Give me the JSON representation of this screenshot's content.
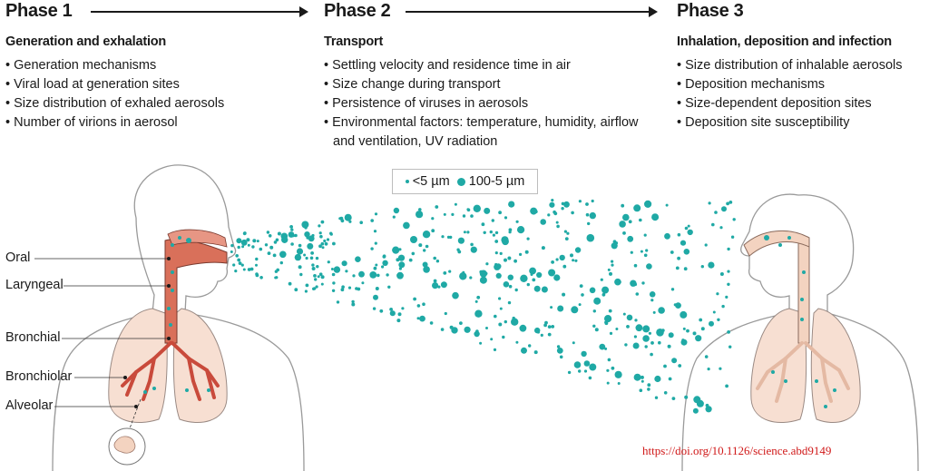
{
  "phases": [
    {
      "title": "Phase 1",
      "subtitle": "Generation and exhalation",
      "items": [
        "Generation mechanisms",
        "Viral load at generation sites",
        "Size distribution of exhaled aerosols",
        "Number of virions in aerosol"
      ]
    },
    {
      "title": "Phase 2",
      "subtitle": "Transport",
      "items": [
        "Settling velocity and residence time in air",
        "Size change during transport",
        "Persistence of viruses in aerosols",
        "Environmental factors: temperature, humidity, airflow and ventilation, UV radiation"
      ]
    },
    {
      "title": "Phase 3",
      "subtitle": "Inhalation, deposition and infection",
      "items": [
        "Size distribution of inhalable aerosols",
        "Deposition mechanisms",
        "Size-dependent deposition sites",
        "Deposition site susceptibility"
      ]
    }
  ],
  "legend": {
    "small": "<5 µm",
    "large": "100-5 µm"
  },
  "regions": [
    "Oral",
    "Laryngeal",
    "Bronchial",
    "Bronchiolar",
    "Alveolar"
  ],
  "doi": "https://doi.org/10.1126/science.abd9149",
  "colors": {
    "aerosol": "#1fa9a5",
    "airway_emitter": "#d9705a",
    "airway_receiver": "#f3d3c0",
    "lung_fill": "#f7dfd2",
    "bronchi": "#c94a3b"
  }
}
